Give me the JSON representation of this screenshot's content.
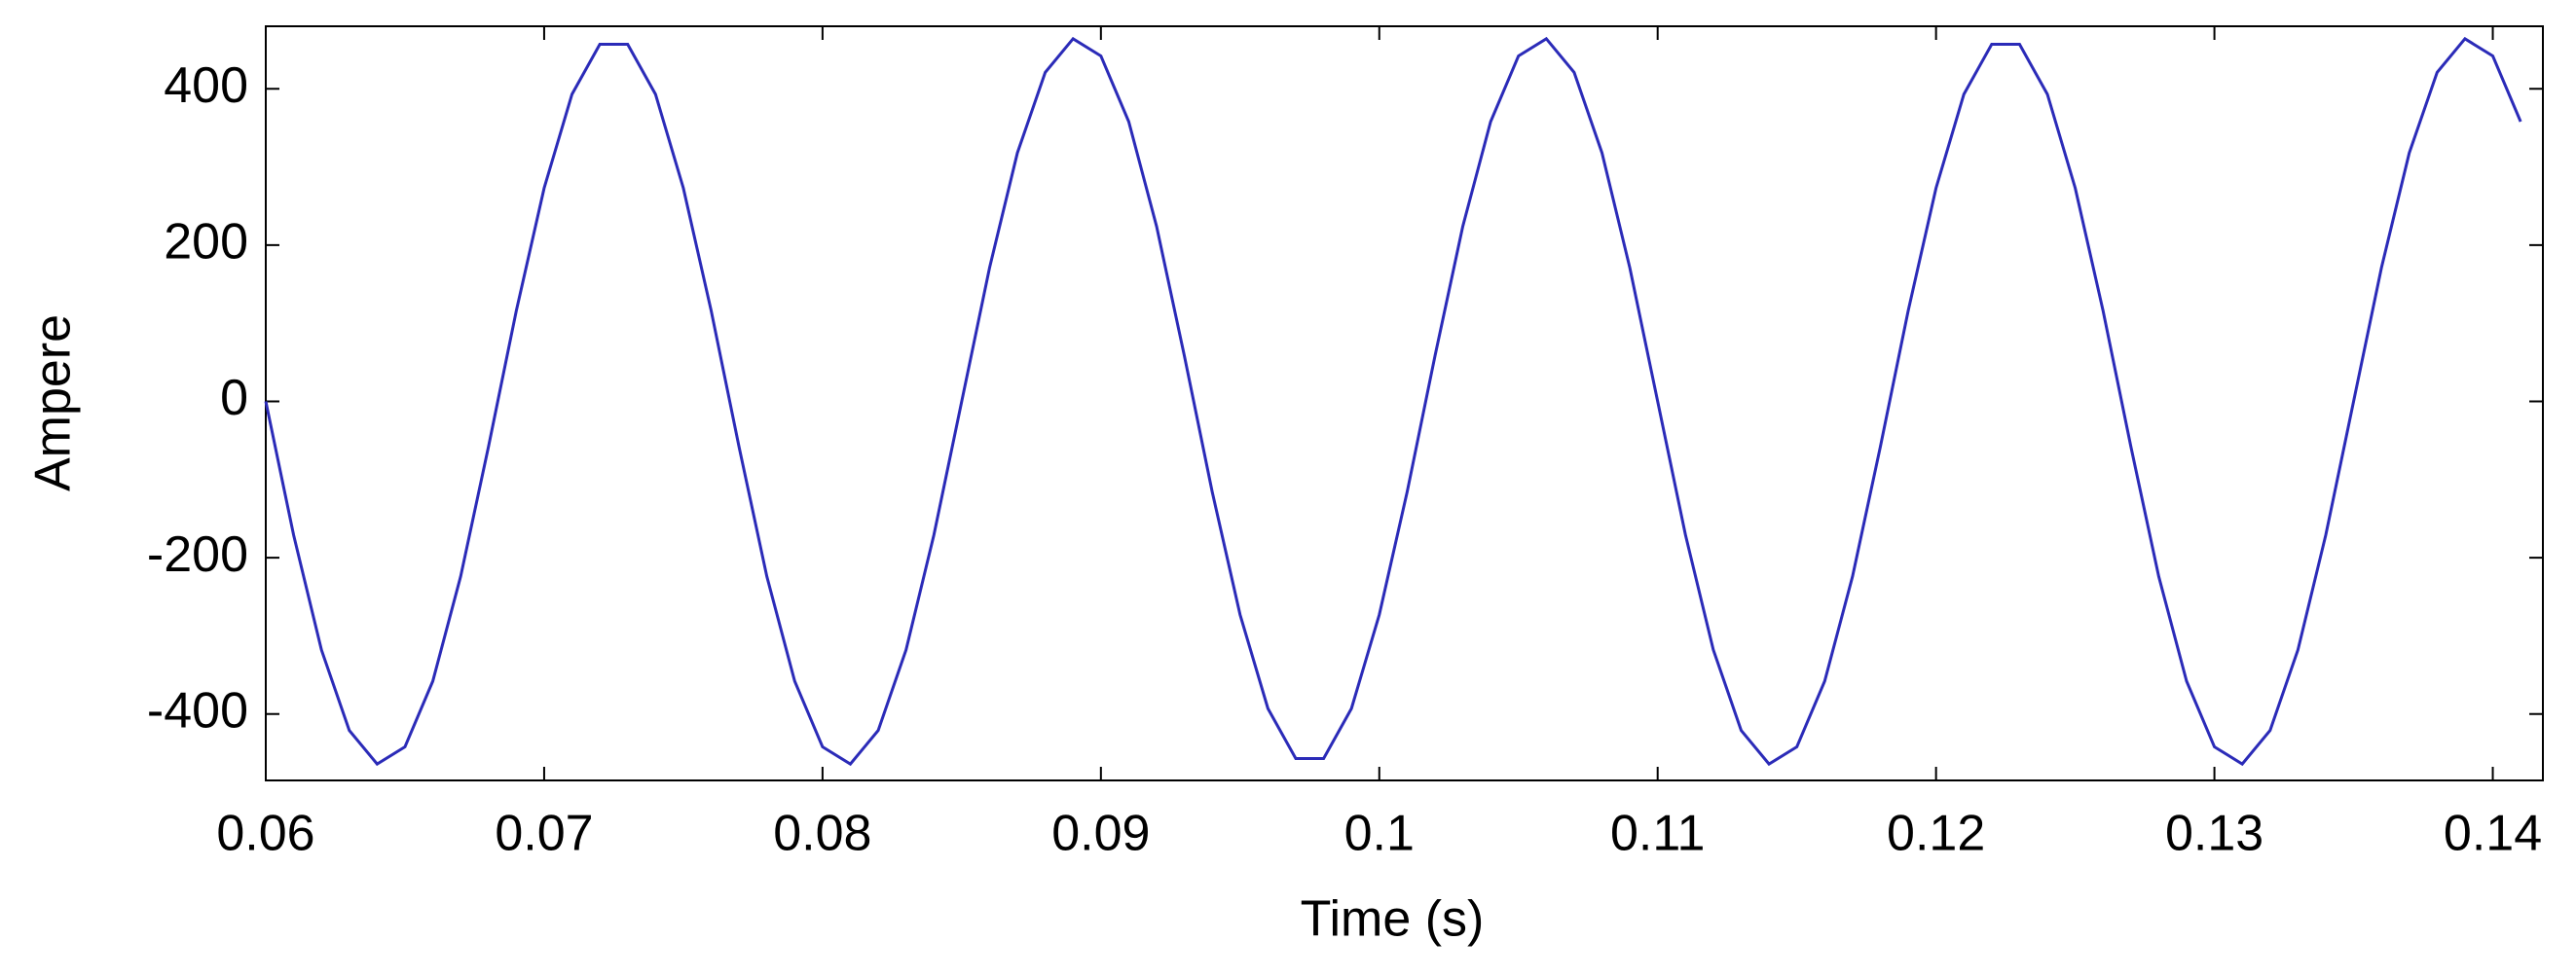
{
  "chart_data": {
    "type": "line",
    "xlabel": "Time (s)",
    "ylabel": "Ampere",
    "x": [
      0.06,
      0.061,
      0.062,
      0.063,
      0.064,
      0.065,
      0.066,
      0.067,
      0.068,
      0.069,
      0.07,
      0.071,
      0.072,
      0.073,
      0.074,
      0.075,
      0.076,
      0.077,
      0.078,
      0.079,
      0.08,
      0.081,
      0.082,
      0.083,
      0.084,
      0.085,
      0.086,
      0.087,
      0.088,
      0.089,
      0.09,
      0.091,
      0.092,
      0.093,
      0.094,
      0.095,
      0.096,
      0.097,
      0.098,
      0.099,
      0.1,
      0.101,
      0.102,
      0.103,
      0.104,
      0.105,
      0.106,
      0.107,
      0.108,
      0.109,
      0.11,
      0.111,
      0.112,
      0.113,
      0.114,
      0.115,
      0.116,
      0.117,
      0.118,
      0.119,
      0.12,
      0.121,
      0.122,
      0.123,
      0.124,
      0.125,
      0.126,
      0.127,
      0.128,
      0.129,
      0.13,
      0.131,
      0.132,
      0.133,
      0.134,
      0.135,
      0.136,
      0.137,
      0.138,
      0.139,
      0.14,
      0.141
    ],
    "values": [
      0,
      -171,
      -318,
      -421,
      -464,
      -442,
      -358,
      -224,
      -58,
      116,
      273,
      393,
      457,
      457,
      393,
      273,
      116,
      -58,
      -224,
      -358,
      -442,
      -464,
      -421,
      -318,
      -171,
      0,
      171,
      318,
      421,
      464,
      442,
      358,
      224,
      58,
      -116,
      -273,
      -393,
      -457,
      -457,
      -393,
      -273,
      -116,
      58,
      224,
      358,
      442,
      464,
      421,
      318,
      171,
      0,
      -171,
      -318,
      -421,
      -464,
      -442,
      -358,
      -224,
      -58,
      116,
      273,
      393,
      457,
      457,
      393,
      273,
      116,
      -58,
      -224,
      -358,
      -442,
      -464,
      -421,
      -318,
      -171,
      0,
      171,
      318,
      421,
      464,
      442,
      358
    ],
    "color": "#2b2bb8",
    "xlim": [
      0.06,
      0.1418
    ],
    "xticks": [
      0.06,
      0.07,
      0.08,
      0.09,
      0.1,
      0.11,
      0.12,
      0.13,
      0.14
    ],
    "ylim": [
      -485,
      480
    ],
    "yticks": [
      -400,
      -200,
      0,
      200,
      400
    ]
  }
}
